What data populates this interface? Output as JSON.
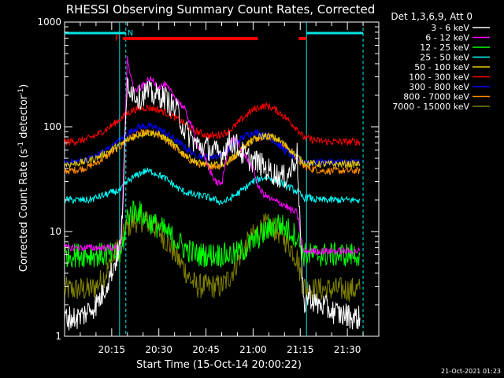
{
  "chart_data": {
    "type": "line",
    "title": "RHESSI Observing Summary Count Rates, Corrected",
    "xlabel": "Start Time (15-Oct-14 20:00:22)",
    "ylabel": "Corrected Count Rate (s^-1 detector^-1)",
    "ylabel_parts": {
      "main": "Corrected Count Rate (s",
      "sup1": "-1",
      "mid": " detector",
      "sup2": "-1",
      "end": ")"
    },
    "yscale": "log",
    "ylim": [
      1,
      1000
    ],
    "y_ticks": [
      1,
      10,
      100,
      1000
    ],
    "y_tick_labels": [
      "1",
      "10",
      "100",
      "1000"
    ],
    "x_range_minutes": [
      0,
      100
    ],
    "x_ticks_minutes": [
      15,
      30,
      45,
      60,
      75,
      90
    ],
    "x_tick_labels": [
      "20:15",
      "20:30",
      "20:45",
      "21:00",
      "21:15",
      "21:30"
    ],
    "legend_title": "Det 1,3,6,9, Att 0",
    "legend_position": "top-right (outside plot)",
    "timestamp": "21-Oct-2021 01:23",
    "flags": {
      "flare_label": "F",
      "flare_intervals": [
        [
          18.5,
          61.5
        ],
        [
          74.5,
          77
        ]
      ],
      "flare_color": "#ff0000",
      "night_label": "N",
      "night_intervals": [
        [
          0,
          19.5
        ],
        [
          77,
          95
        ]
      ],
      "night_color": "#00e5e5"
    },
    "vertical_markers": {
      "solid": [
        17.5,
        77
      ],
      "dashed": [
        19.5,
        95
      ]
    },
    "sample_step_minutes": 2,
    "series": [
      {
        "name": "3 - 6 keV",
        "color": "#ffffff",
        "x": [
          0,
          2,
          4,
          6,
          8,
          10,
          12,
          14,
          16,
          18,
          20,
          22,
          24,
          26,
          28,
          30,
          32,
          34,
          36,
          38,
          40,
          42,
          44,
          46,
          48,
          50,
          52,
          54,
          56,
          58,
          60,
          62,
          64,
          66,
          68,
          70,
          72,
          74,
          76,
          78,
          80,
          82,
          84,
          86,
          88,
          90,
          92,
          94
        ],
        "values": [
          1.5,
          1.5,
          1.5,
          1.6,
          1.8,
          2.0,
          2.5,
          3.5,
          5,
          8,
          270,
          210,
          190,
          220,
          200,
          200,
          190,
          160,
          140,
          95,
          80,
          68,
          64,
          62,
          57,
          55,
          70,
          72,
          58,
          50,
          48,
          45,
          40,
          37,
          34,
          33,
          38,
          55,
          2.0,
          2.5,
          2.0,
          2.0,
          1.8,
          1.7,
          1.6,
          1.6,
          1.5,
          1.5
        ]
      },
      {
        "name": "6 - 12 keV",
        "color": "#ff00ff",
        "x": [
          0,
          2,
          4,
          6,
          8,
          10,
          12,
          14,
          16,
          18,
          20,
          22,
          24,
          26,
          28,
          30,
          32,
          34,
          36,
          38,
          40,
          42,
          44,
          46,
          48,
          50,
          52,
          54,
          56,
          58,
          60,
          62,
          64,
          66,
          68,
          70,
          72,
          74,
          76,
          78,
          80,
          82,
          84,
          86,
          88,
          90,
          92,
          94
        ],
        "values": [
          7,
          7,
          7,
          7,
          7,
          7,
          7,
          7,
          7,
          7,
          450,
          220,
          230,
          270,
          280,
          240,
          250,
          210,
          180,
          150,
          110,
          70,
          55,
          40,
          30,
          28,
          65,
          80,
          60,
          50,
          40,
          25,
          22,
          20,
          19,
          18,
          16,
          15,
          6.5,
          6.5,
          6.5,
          6.5,
          6.5,
          6.5,
          6.5,
          6.5,
          6.5,
          6.5
        ]
      },
      {
        "name": "12 - 25 keV",
        "color": "#00ff00",
        "x": [
          0,
          2,
          4,
          6,
          8,
          10,
          12,
          14,
          16,
          18,
          20,
          22,
          24,
          26,
          28,
          30,
          32,
          34,
          36,
          38,
          40,
          42,
          44,
          46,
          48,
          50,
          52,
          54,
          56,
          58,
          60,
          62,
          64,
          66,
          68,
          70,
          72,
          74,
          76,
          78,
          80,
          82,
          84,
          86,
          88,
          90,
          92,
          94
        ],
        "values": [
          6,
          6,
          6,
          6,
          6,
          6,
          6,
          6,
          6,
          6,
          14,
          16,
          15,
          13,
          12,
          11,
          10,
          9,
          8,
          7,
          6.5,
          6,
          6,
          6,
          6,
          6,
          6,
          6,
          6.5,
          7,
          8,
          9,
          10,
          11,
          12,
          11,
          10,
          9,
          6,
          6,
          6,
          6,
          6,
          6,
          6,
          6,
          6,
          6
        ]
      },
      {
        "name": "25 - 50 keV",
        "color": "#00ffff",
        "x": [
          0,
          2,
          4,
          6,
          8,
          10,
          12,
          14,
          16,
          18,
          20,
          22,
          24,
          26,
          28,
          30,
          32,
          34,
          36,
          38,
          40,
          42,
          44,
          46,
          48,
          50,
          52,
          54,
          56,
          58,
          60,
          62,
          64,
          66,
          68,
          70,
          72,
          74,
          76,
          78,
          80,
          82,
          84,
          86,
          88,
          90,
          92,
          94
        ],
        "values": [
          20,
          20,
          20,
          20,
          20,
          21,
          22,
          23,
          24,
          25,
          30,
          33,
          36,
          38,
          37,
          35,
          32,
          29,
          26,
          24,
          23,
          22,
          22,
          21,
          20,
          19,
          20,
          22,
          24,
          27,
          30,
          32,
          33,
          32,
          30,
          28,
          26,
          24,
          21,
          21,
          20,
          20,
          20,
          20,
          20,
          20,
          20,
          20
        ]
      },
      {
        "name": "50 - 100 keV",
        "color": "#e5c800",
        "x": [
          0,
          2,
          4,
          6,
          8,
          10,
          12,
          14,
          16,
          18,
          20,
          22,
          24,
          26,
          28,
          30,
          32,
          34,
          36,
          38,
          40,
          42,
          44,
          46,
          48,
          50,
          52,
          54,
          56,
          58,
          60,
          62,
          64,
          66,
          68,
          70,
          72,
          74,
          76,
          78,
          80,
          82,
          84,
          86,
          88,
          90,
          92,
          94
        ],
        "values": [
          44,
          44,
          45,
          46,
          48,
          50,
          54,
          58,
          63,
          68,
          75,
          80,
          85,
          88,
          87,
          84,
          78,
          70,
          62,
          55,
          50,
          46,
          44,
          43,
          43,
          44,
          47,
          52,
          60,
          68,
          75,
          80,
          82,
          80,
          75,
          68,
          60,
          52,
          46,
          45,
          44,
          44,
          44,
          44,
          44,
          44,
          44,
          44
        ]
      },
      {
        "name": "100 - 300 keV",
        "color": "#ff0000",
        "x": [
          0,
          2,
          4,
          6,
          8,
          10,
          12,
          14,
          16,
          18,
          20,
          22,
          24,
          26,
          28,
          30,
          32,
          34,
          36,
          38,
          40,
          42,
          44,
          46,
          48,
          50,
          52,
          54,
          56,
          58,
          60,
          62,
          64,
          66,
          68,
          70,
          72,
          74,
          76,
          78,
          80,
          82,
          84,
          86,
          88,
          90,
          92,
          94
        ],
        "values": [
          72,
          72,
          73,
          75,
          78,
          83,
          90,
          98,
          108,
          120,
          135,
          145,
          150,
          152,
          150,
          145,
          138,
          128,
          118,
          108,
          98,
          90,
          85,
          82,
          82,
          85,
          90,
          100,
          115,
          130,
          145,
          155,
          158,
          152,
          140,
          125,
          110,
          96,
          80,
          76,
          74,
          73,
          72,
          72,
          72,
          72,
          72,
          72
        ]
      },
      {
        "name": "300 - 800 keV",
        "color": "#0000ff",
        "x": [
          0,
          2,
          4,
          6,
          8,
          10,
          12,
          14,
          16,
          18,
          20,
          22,
          24,
          26,
          28,
          30,
          32,
          34,
          36,
          38,
          40,
          42,
          44,
          46,
          48,
          50,
          52,
          54,
          56,
          58,
          60,
          62,
          64,
          66,
          68,
          70,
          72,
          74,
          76,
          78,
          80,
          82,
          84,
          86,
          88,
          90,
          92,
          94
        ],
        "values": [
          46,
          46,
          47,
          48,
          50,
          53,
          57,
          62,
          68,
          75,
          85,
          95,
          100,
          102,
          100,
          95,
          88,
          80,
          72,
          65,
          58,
          54,
          52,
          51,
          52,
          55,
          60,
          68,
          76,
          84,
          88,
          87,
          82,
          76,
          68,
          60,
          54,
          50,
          47,
          46,
          46,
          46,
          46,
          46,
          46,
          46,
          46,
          46
        ]
      },
      {
        "name": "800 - 7000 keV",
        "color": "#ff8c00",
        "x": [
          0,
          2,
          4,
          6,
          8,
          10,
          12,
          14,
          16,
          18,
          20,
          22,
          24,
          26,
          28,
          30,
          32,
          34,
          36,
          38,
          40,
          42,
          44,
          46,
          48,
          50,
          52,
          54,
          56,
          58,
          60,
          62,
          64,
          66,
          68,
          70,
          72,
          74,
          76,
          78,
          80,
          82,
          84,
          86,
          88,
          90,
          92,
          94
        ],
        "values": [
          38,
          38,
          39,
          40,
          42,
          45,
          49,
          54,
          60,
          66,
          75,
          82,
          86,
          88,
          86,
          82,
          76,
          68,
          60,
          53,
          48,
          45,
          43,
          42,
          42,
          43,
          46,
          52,
          60,
          68,
          75,
          80,
          82,
          80,
          74,
          66,
          58,
          50,
          42,
          40,
          39,
          38,
          38,
          38,
          38,
          38,
          38,
          38
        ]
      },
      {
        "name": "7000 - 15000 keV",
        "color": "#808000",
        "x": [
          0,
          2,
          4,
          6,
          8,
          10,
          12,
          14,
          16,
          18,
          20,
          22,
          24,
          26,
          28,
          30,
          32,
          34,
          36,
          38,
          40,
          42,
          44,
          46,
          48,
          50,
          52,
          54,
          56,
          58,
          60,
          62,
          64,
          66,
          68,
          70,
          72,
          74,
          76,
          78,
          80,
          82,
          84,
          86,
          88,
          90,
          92,
          94
        ],
        "values": [
          2.8,
          2.8,
          2.8,
          2.8,
          2.8,
          3.0,
          3.5,
          4.5,
          6,
          8,
          11,
          12.5,
          13,
          12.5,
          11.5,
          10,
          8.5,
          7,
          5.5,
          4.5,
          3.5,
          3.0,
          3.0,
          3.0,
          3.0,
          3.0,
          3.5,
          4.5,
          6,
          7.5,
          9,
          10.5,
          11.5,
          11,
          10,
          8.5,
          7,
          5.5,
          3,
          2.8,
          2.8,
          2.8,
          2.8,
          2.8,
          2.8,
          2.8,
          2.8,
          2.8
        ]
      }
    ]
  }
}
